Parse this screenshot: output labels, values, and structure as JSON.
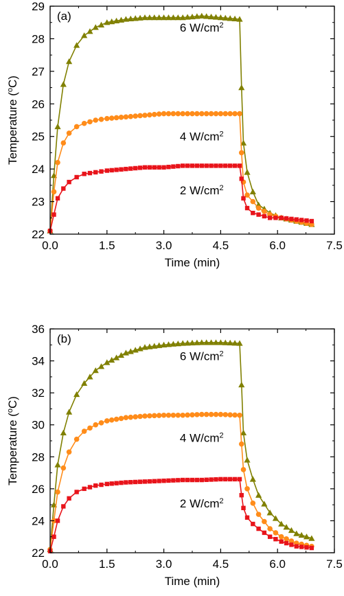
{
  "chart_data": [
    {
      "type": "line",
      "panel_label": "(a)",
      "xlabel": "Time (min)",
      "ylabel_prefix": "Temperature (",
      "ylabel_sup": "o",
      "ylabel_suffix": "C)",
      "xlim": [
        0.0,
        7.5
      ],
      "ylim": [
        22,
        29
      ],
      "xticks": [
        0.0,
        1.5,
        3.0,
        4.5,
        6.0,
        7.5
      ],
      "xtick_labels": [
        "0.0",
        "1.5",
        "3.0",
        "4.5",
        "6.0",
        "7.5"
      ],
      "yticks": [
        22,
        23,
        24,
        25,
        26,
        27,
        28,
        29
      ],
      "ytick_labels": [
        "22",
        "23",
        "24",
        "25",
        "26",
        "27",
        "28",
        "29"
      ],
      "grid": false,
      "series": [
        {
          "label_text": "6 W/cm",
          "label_sup": "2",
          "label_at": [
            4.0,
            28.35
          ],
          "color": "#808000",
          "marker": "triangle",
          "x": [
            0.0,
            0.1,
            0.2,
            0.35,
            0.5,
            0.7,
            0.9,
            1.2,
            1.5,
            2.0,
            2.5,
            3.0,
            3.5,
            4.0,
            4.5,
            5.0,
            5.05,
            5.1,
            5.2,
            5.35,
            5.5,
            5.8,
            6.1,
            6.5,
            6.9
          ],
          "y": [
            22.1,
            23.8,
            25.3,
            26.6,
            27.3,
            27.8,
            28.1,
            28.35,
            28.5,
            28.6,
            28.65,
            28.65,
            28.65,
            28.7,
            28.65,
            28.6,
            26.5,
            24.8,
            23.9,
            23.3,
            22.9,
            22.65,
            22.5,
            22.4,
            22.3
          ]
        },
        {
          "label_text": "4 W/cm",
          "label_sup": "2",
          "label_at": [
            4.0,
            25.0
          ],
          "color": "#FF8C1A",
          "marker": "circle",
          "x": [
            0.0,
            0.1,
            0.2,
            0.35,
            0.5,
            0.7,
            0.9,
            1.2,
            1.5,
            2.0,
            2.5,
            3.0,
            3.5,
            4.0,
            4.5,
            5.0,
            5.05,
            5.1,
            5.2,
            5.35,
            5.5,
            5.8,
            6.1,
            6.5,
            6.9
          ],
          "y": [
            22.1,
            23.3,
            24.2,
            24.8,
            25.1,
            25.3,
            25.4,
            25.5,
            25.55,
            25.6,
            25.65,
            25.7,
            25.7,
            25.7,
            25.7,
            25.7,
            24.5,
            23.6,
            23.2,
            23.0,
            22.8,
            22.6,
            22.5,
            22.4,
            22.3
          ]
        },
        {
          "label_text": "2 W/cm",
          "label_sup": "2",
          "label_at": [
            4.0,
            23.35
          ],
          "color": "#E8141B",
          "marker": "square",
          "x": [
            0.0,
            0.1,
            0.2,
            0.35,
            0.5,
            0.7,
            0.9,
            1.2,
            1.5,
            2.0,
            2.5,
            3.0,
            3.5,
            4.0,
            4.5,
            5.0,
            5.05,
            5.1,
            5.2,
            5.35,
            5.5,
            5.8,
            6.1,
            6.5,
            6.9
          ],
          "y": [
            22.1,
            22.6,
            23.1,
            23.4,
            23.6,
            23.75,
            23.85,
            23.9,
            23.95,
            24.0,
            24.05,
            24.05,
            24.1,
            24.1,
            24.1,
            24.1,
            23.7,
            23.1,
            22.8,
            22.65,
            22.6,
            22.5,
            22.5,
            22.45,
            22.4
          ]
        }
      ]
    },
    {
      "type": "line",
      "panel_label": "(b)",
      "xlabel": "Time (min)",
      "ylabel_prefix": "Temperature (",
      "ylabel_sup": "o",
      "ylabel_suffix": "C)",
      "xlim": [
        0.0,
        7.5
      ],
      "ylim": [
        22,
        36
      ],
      "xticks": [
        0.0,
        1.5,
        3.0,
        4.5,
        6.0,
        7.5
      ],
      "xtick_labels": [
        "0.0",
        "1.5",
        "3.0",
        "4.5",
        "6.0",
        "7.5"
      ],
      "yticks": [
        22,
        24,
        26,
        28,
        30,
        32,
        34,
        36
      ],
      "ytick_labels": [
        "22",
        "24",
        "26",
        "28",
        "30",
        "32",
        "34",
        "36"
      ],
      "grid": false,
      "series": [
        {
          "label_text": "6 W/cm",
          "label_sup": "2",
          "label_at": [
            4.0,
            34.3
          ],
          "color": "#808000",
          "marker": "triangle",
          "x": [
            0.0,
            0.1,
            0.2,
            0.35,
            0.5,
            0.7,
            0.9,
            1.2,
            1.5,
            2.0,
            2.5,
            3.0,
            3.5,
            4.0,
            4.5,
            5.0,
            5.05,
            5.1,
            5.2,
            5.35,
            5.5,
            5.8,
            6.1,
            6.5,
            6.9
          ],
          "y": [
            22.2,
            25.0,
            27.5,
            29.5,
            30.8,
            31.9,
            32.6,
            33.4,
            33.9,
            34.5,
            34.85,
            35.0,
            35.1,
            35.15,
            35.15,
            35.1,
            32.5,
            29.5,
            27.8,
            26.6,
            25.6,
            24.5,
            23.8,
            23.2,
            22.9
          ]
        },
        {
          "label_text": "4 W/cm",
          "label_sup": "2",
          "label_at": [
            4.0,
            29.2
          ],
          "color": "#FF8C1A",
          "marker": "circle",
          "x": [
            0.0,
            0.1,
            0.2,
            0.35,
            0.5,
            0.7,
            0.9,
            1.2,
            1.5,
            2.0,
            2.5,
            3.0,
            3.5,
            4.0,
            4.5,
            5.0,
            5.05,
            5.1,
            5.2,
            5.35,
            5.5,
            5.8,
            6.1,
            6.5,
            6.9
          ],
          "y": [
            22.2,
            24.0,
            25.8,
            27.3,
            28.3,
            29.1,
            29.6,
            30.0,
            30.25,
            30.45,
            30.55,
            30.6,
            30.6,
            30.65,
            30.65,
            30.6,
            28.8,
            27.2,
            26.0,
            25.1,
            24.4,
            23.5,
            23.0,
            22.6,
            22.4
          ]
        },
        {
          "label_text": "2 W/cm",
          "label_sup": "2",
          "label_at": [
            4.0,
            25.1
          ],
          "color": "#E8141B",
          "marker": "square",
          "x": [
            0.0,
            0.1,
            0.2,
            0.35,
            0.5,
            0.7,
            0.9,
            1.2,
            1.5,
            2.0,
            2.5,
            3.0,
            3.5,
            4.0,
            4.5,
            5.0,
            5.05,
            5.1,
            5.2,
            5.35,
            5.5,
            5.8,
            6.1,
            6.5,
            6.9
          ],
          "y": [
            22.1,
            23.0,
            24.0,
            24.9,
            25.4,
            25.8,
            26.0,
            26.2,
            26.3,
            26.4,
            26.45,
            26.5,
            26.55,
            26.55,
            26.6,
            26.6,
            25.6,
            24.8,
            24.2,
            23.8,
            23.5,
            23.0,
            22.7,
            22.4,
            22.3
          ]
        }
      ]
    }
  ]
}
